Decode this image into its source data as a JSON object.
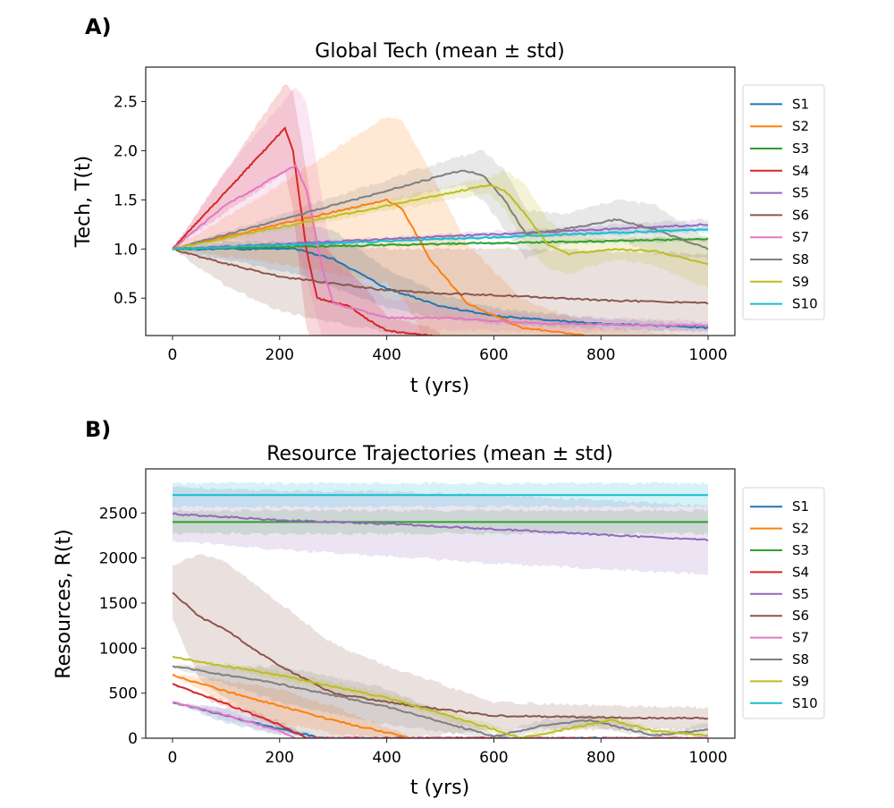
{
  "colors": {
    "S1": "#1f77b4",
    "S2": "#ff7f0e",
    "S3": "#2ca02c",
    "S4": "#d62728",
    "S5": "#9467bd",
    "S6": "#8c564b",
    "S7": "#e377c2",
    "S8": "#7f7f7f",
    "S9": "#bcbd22",
    "S10": "#17becf"
  },
  "chart_data": [
    {
      "type": "line",
      "panel_label": "A)",
      "title": "Global Tech (mean ± std)",
      "xlabel": "t (yrs)",
      "ylabel": "Tech, T(t)",
      "xlim": [
        -50,
        1050
      ],
      "ylim": [
        0.12,
        2.85
      ],
      "xticks": [
        0,
        200,
        400,
        600,
        800,
        1000
      ],
      "xtick_labels": [
        "0",
        "200",
        "400",
        "600",
        "800",
        "1000"
      ],
      "yticks": [
        0.5,
        1.0,
        1.5,
        2.0,
        2.5
      ],
      "ytick_labels": [
        "0.5",
        "1.0",
        "1.5",
        "2.0",
        "2.5"
      ],
      "grid": false,
      "legend_position": "outside-right",
      "series": [
        {
          "name": "S1",
          "x": [
            0,
            230,
            300,
            400,
            500,
            600,
            800,
            1000
          ],
          "y": [
            1.0,
            1.0,
            0.9,
            0.6,
            0.42,
            0.32,
            0.24,
            0.2
          ],
          "std": [
            0,
            0.25,
            0.3,
            0.2,
            0.12,
            0.08,
            0.05,
            0.04
          ]
        },
        {
          "name": "S2",
          "x": [
            0,
            200,
            400,
            430,
            480,
            550,
            650,
            800,
            1000
          ],
          "y": [
            1.0,
            1.25,
            1.5,
            1.4,
            0.9,
            0.45,
            0.2,
            0.1,
            0.05
          ],
          "std": [
            0,
            0.4,
            0.85,
            0.9,
            0.9,
            0.6,
            0.3,
            0.1,
            0.05
          ]
        },
        {
          "name": "S3",
          "x": [
            0,
            1000
          ],
          "y": [
            1.0,
            1.1
          ],
          "std": [
            0,
            0.02
          ]
        },
        {
          "name": "S4",
          "x": [
            0,
            210,
            225,
            250,
            270,
            330,
            360,
            400,
            480,
            500
          ],
          "y": [
            1.0,
            2.23,
            2.0,
            1.0,
            0.5,
            0.42,
            0.3,
            0.17,
            0.12,
            0.1
          ],
          "std": [
            0,
            0.45,
            0.6,
            0.8,
            0.6,
            0.35,
            0.3,
            0.15,
            0.08,
            0.05
          ]
        },
        {
          "name": "S5",
          "x": [
            0,
            1000
          ],
          "y": [
            1.0,
            1.25
          ],
          "std": [
            0,
            0.05
          ]
        },
        {
          "name": "S6",
          "x": [
            0,
            100,
            200,
            300,
            400,
            500,
            600,
            800,
            1000
          ],
          "y": [
            1.0,
            0.85,
            0.72,
            0.65,
            0.58,
            0.55,
            0.53,
            0.48,
            0.45
          ],
          "std": [
            0,
            0.22,
            0.35,
            0.4,
            0.42,
            0.45,
            0.48,
            0.5,
            0.5
          ]
        },
        {
          "name": "S7",
          "x": [
            0,
            100,
            230,
            250,
            280,
            300,
            400,
            500,
            700,
            1000
          ],
          "y": [
            1.0,
            1.45,
            1.85,
            1.6,
            0.8,
            0.45,
            0.3,
            0.3,
            0.24,
            0.22
          ],
          "std": [
            0,
            0.35,
            0.8,
            0.9,
            0.7,
            0.4,
            0.2,
            0.12,
            0.08,
            0.05
          ]
        },
        {
          "name": "S8",
          "x": [
            0,
            540,
            580,
            620,
            660,
            730,
            830,
            900,
            1000
          ],
          "y": [
            1.0,
            1.8,
            1.75,
            1.5,
            1.15,
            1.2,
            1.3,
            1.2,
            1.0
          ],
          "std": [
            0,
            0.15,
            0.25,
            0.3,
            0.25,
            0.15,
            0.2,
            0.25,
            0.1
          ]
        },
        {
          "name": "S9",
          "x": [
            0,
            590,
            620,
            660,
            700,
            740,
            830,
            900,
            1000
          ],
          "y": [
            1.0,
            1.65,
            1.6,
            1.35,
            1.05,
            0.95,
            1.0,
            0.98,
            0.85
          ],
          "std": [
            0,
            0.08,
            0.2,
            0.3,
            0.25,
            0.2,
            0.1,
            0.15,
            0.25
          ]
        },
        {
          "name": "S10",
          "x": [
            0,
            1000
          ],
          "y": [
            1.0,
            1.2
          ],
          "std": [
            0,
            0.03
          ]
        }
      ]
    },
    {
      "type": "line",
      "panel_label": "B)",
      "title": "Resource Trajectories (mean ± std)",
      "xlabel": "t (yrs)",
      "ylabel": "Resources, R(t)",
      "xlim": [
        -50,
        1050
      ],
      "ylim": [
        0,
        2990
      ],
      "xticks": [
        0,
        200,
        400,
        600,
        800,
        1000
      ],
      "xtick_labels": [
        "0",
        "200",
        "400",
        "600",
        "800",
        "1000"
      ],
      "yticks": [
        0,
        500,
        1000,
        1500,
        2000,
        2500
      ],
      "ytick_labels": [
        "0",
        "500",
        "1000",
        "1500",
        "2000",
        "2500"
      ],
      "grid": false,
      "legend_position": "outside-right",
      "series": [
        {
          "name": "S1",
          "x": [
            0,
            100,
            200,
            280,
            1000
          ],
          "y": [
            400,
            250,
            100,
            0,
            0
          ],
          "std": [
            0,
            80,
            60,
            0,
            0
          ]
        },
        {
          "name": "S2",
          "x": [
            0,
            100,
            200,
            300,
            400,
            450,
            1000
          ],
          "y": [
            700,
            520,
            360,
            200,
            60,
            0,
            0
          ],
          "std": [
            0,
            120,
            180,
            150,
            60,
            0,
            0
          ]
        },
        {
          "name": "S3",
          "x": [
            0,
            1000
          ],
          "y": [
            2400,
            2400
          ],
          "std": [
            130,
            130
          ]
        },
        {
          "name": "S4",
          "x": [
            0,
            100,
            200,
            250,
            1000
          ],
          "y": [
            600,
            380,
            150,
            0,
            0
          ],
          "std": [
            0,
            40,
            40,
            0,
            0
          ]
        },
        {
          "name": "S5",
          "x": [
            0,
            200,
            400,
            600,
            800,
            1000
          ],
          "y": [
            2490,
            2420,
            2380,
            2320,
            2260,
            2200
          ],
          "std": [
            300,
            330,
            360,
            380,
            380,
            380
          ]
        },
        {
          "name": "S6",
          "x": [
            0,
            50,
            100,
            200,
            300,
            400,
            500,
            600,
            800,
            1000
          ],
          "y": [
            1620,
            1350,
            1200,
            800,
            500,
            400,
            320,
            250,
            230,
            220
          ],
          "std": [
            300,
            700,
            750,
            700,
            550,
            400,
            280,
            150,
            130,
            120
          ]
        },
        {
          "name": "S7",
          "x": [
            0,
            100,
            200,
            230,
            1000
          ],
          "y": [
            400,
            260,
            80,
            0,
            0
          ],
          "std": [
            0,
            60,
            40,
            0,
            0
          ]
        },
        {
          "name": "S8",
          "x": [
            0,
            200,
            400,
            600,
            700,
            780,
            900,
            1000
          ],
          "y": [
            800,
            600,
            350,
            20,
            150,
            200,
            30,
            100
          ],
          "std": [
            0,
            200,
            200,
            30,
            60,
            60,
            30,
            60
          ]
        },
        {
          "name": "S9",
          "x": [
            0,
            200,
            400,
            600,
            650,
            820,
            900,
            1000
          ],
          "y": [
            900,
            700,
            450,
            100,
            0,
            200,
            80,
            30
          ],
          "std": [
            0,
            50,
            50,
            40,
            20,
            40,
            30,
            20
          ]
        },
        {
          "name": "S10",
          "x": [
            0,
            1000
          ],
          "y": [
            2700,
            2700
          ],
          "std": [
            130,
            130
          ]
        }
      ]
    }
  ]
}
